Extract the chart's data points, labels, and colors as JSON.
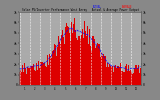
{
  "title": "Solar PV/Inverter Performance West Array  Actual & Average Power Output",
  "bg_color": "#888888",
  "plot_bg": "#aaaaaa",
  "bar_color": "#dd0000",
  "avg_color_blue": "#0000ff",
  "avg_color_red": "#ff0000",
  "grid_color": "#ffffff",
  "text_color": "#000000",
  "ymax": 7000,
  "ytick_labels": [
    "0",
    "1k",
    "2k",
    "3k",
    "4k",
    "5k",
    "6k",
    "7k"
  ],
  "ytick_values": [
    0,
    1000,
    2000,
    3000,
    4000,
    5000,
    6000,
    7000
  ]
}
